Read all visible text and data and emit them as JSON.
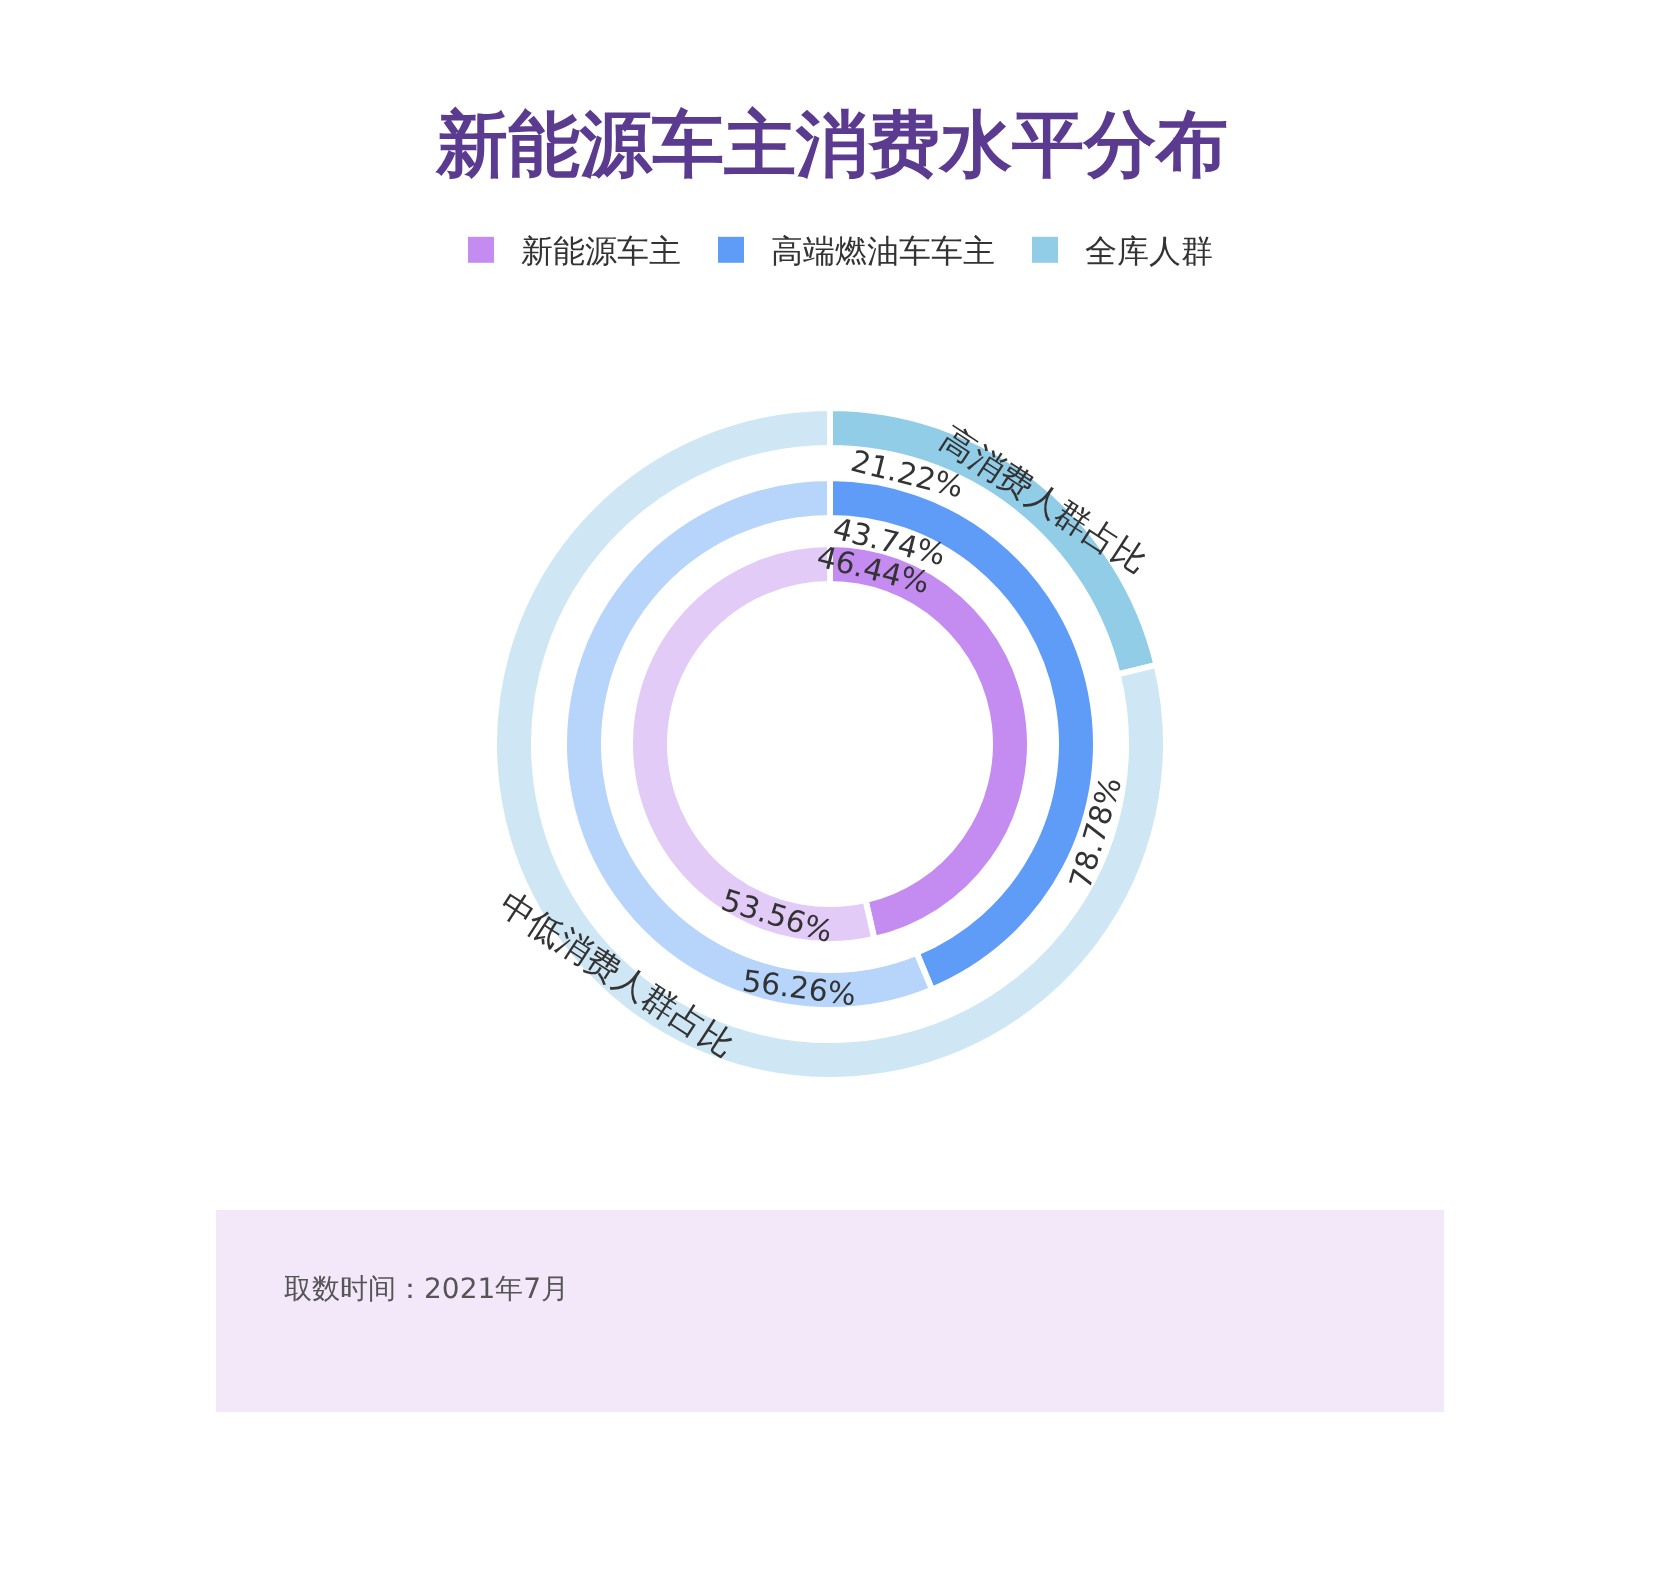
{
  "chart_data": {
    "type": "donut",
    "title": "新能源车主消费水平分布",
    "categories": [
      "高消费人群占比",
      "中低消费人群占比"
    ],
    "series": [
      {
        "name": "新能源车主",
        "color": "#c48cf0",
        "colors": [
          "#c48cf0",
          "#e3cbf8"
        ],
        "values": [
          46.44,
          53.56
        ],
        "value_labels": [
          "46.44%",
          "53.56%"
        ]
      },
      {
        "name": "高端燃油车车主",
        "color": "#5f9cf8",
        "colors": [
          "#5f9cf8",
          "#b7d4fa"
        ],
        "values": [
          43.74,
          56.26
        ],
        "value_labels": [
          "43.74%",
          "56.26%"
        ]
      },
      {
        "name": "全库人群",
        "color": "#92cde8",
        "colors": [
          "#92cde8",
          "#cfe7f4"
        ],
        "values": [
          21.22,
          78.78
        ],
        "value_labels": [
          "21.22%",
          "78.78%"
        ]
      }
    ],
    "legend": "top",
    "annotations": [
      "取数时间：2021年7月"
    ]
  }
}
